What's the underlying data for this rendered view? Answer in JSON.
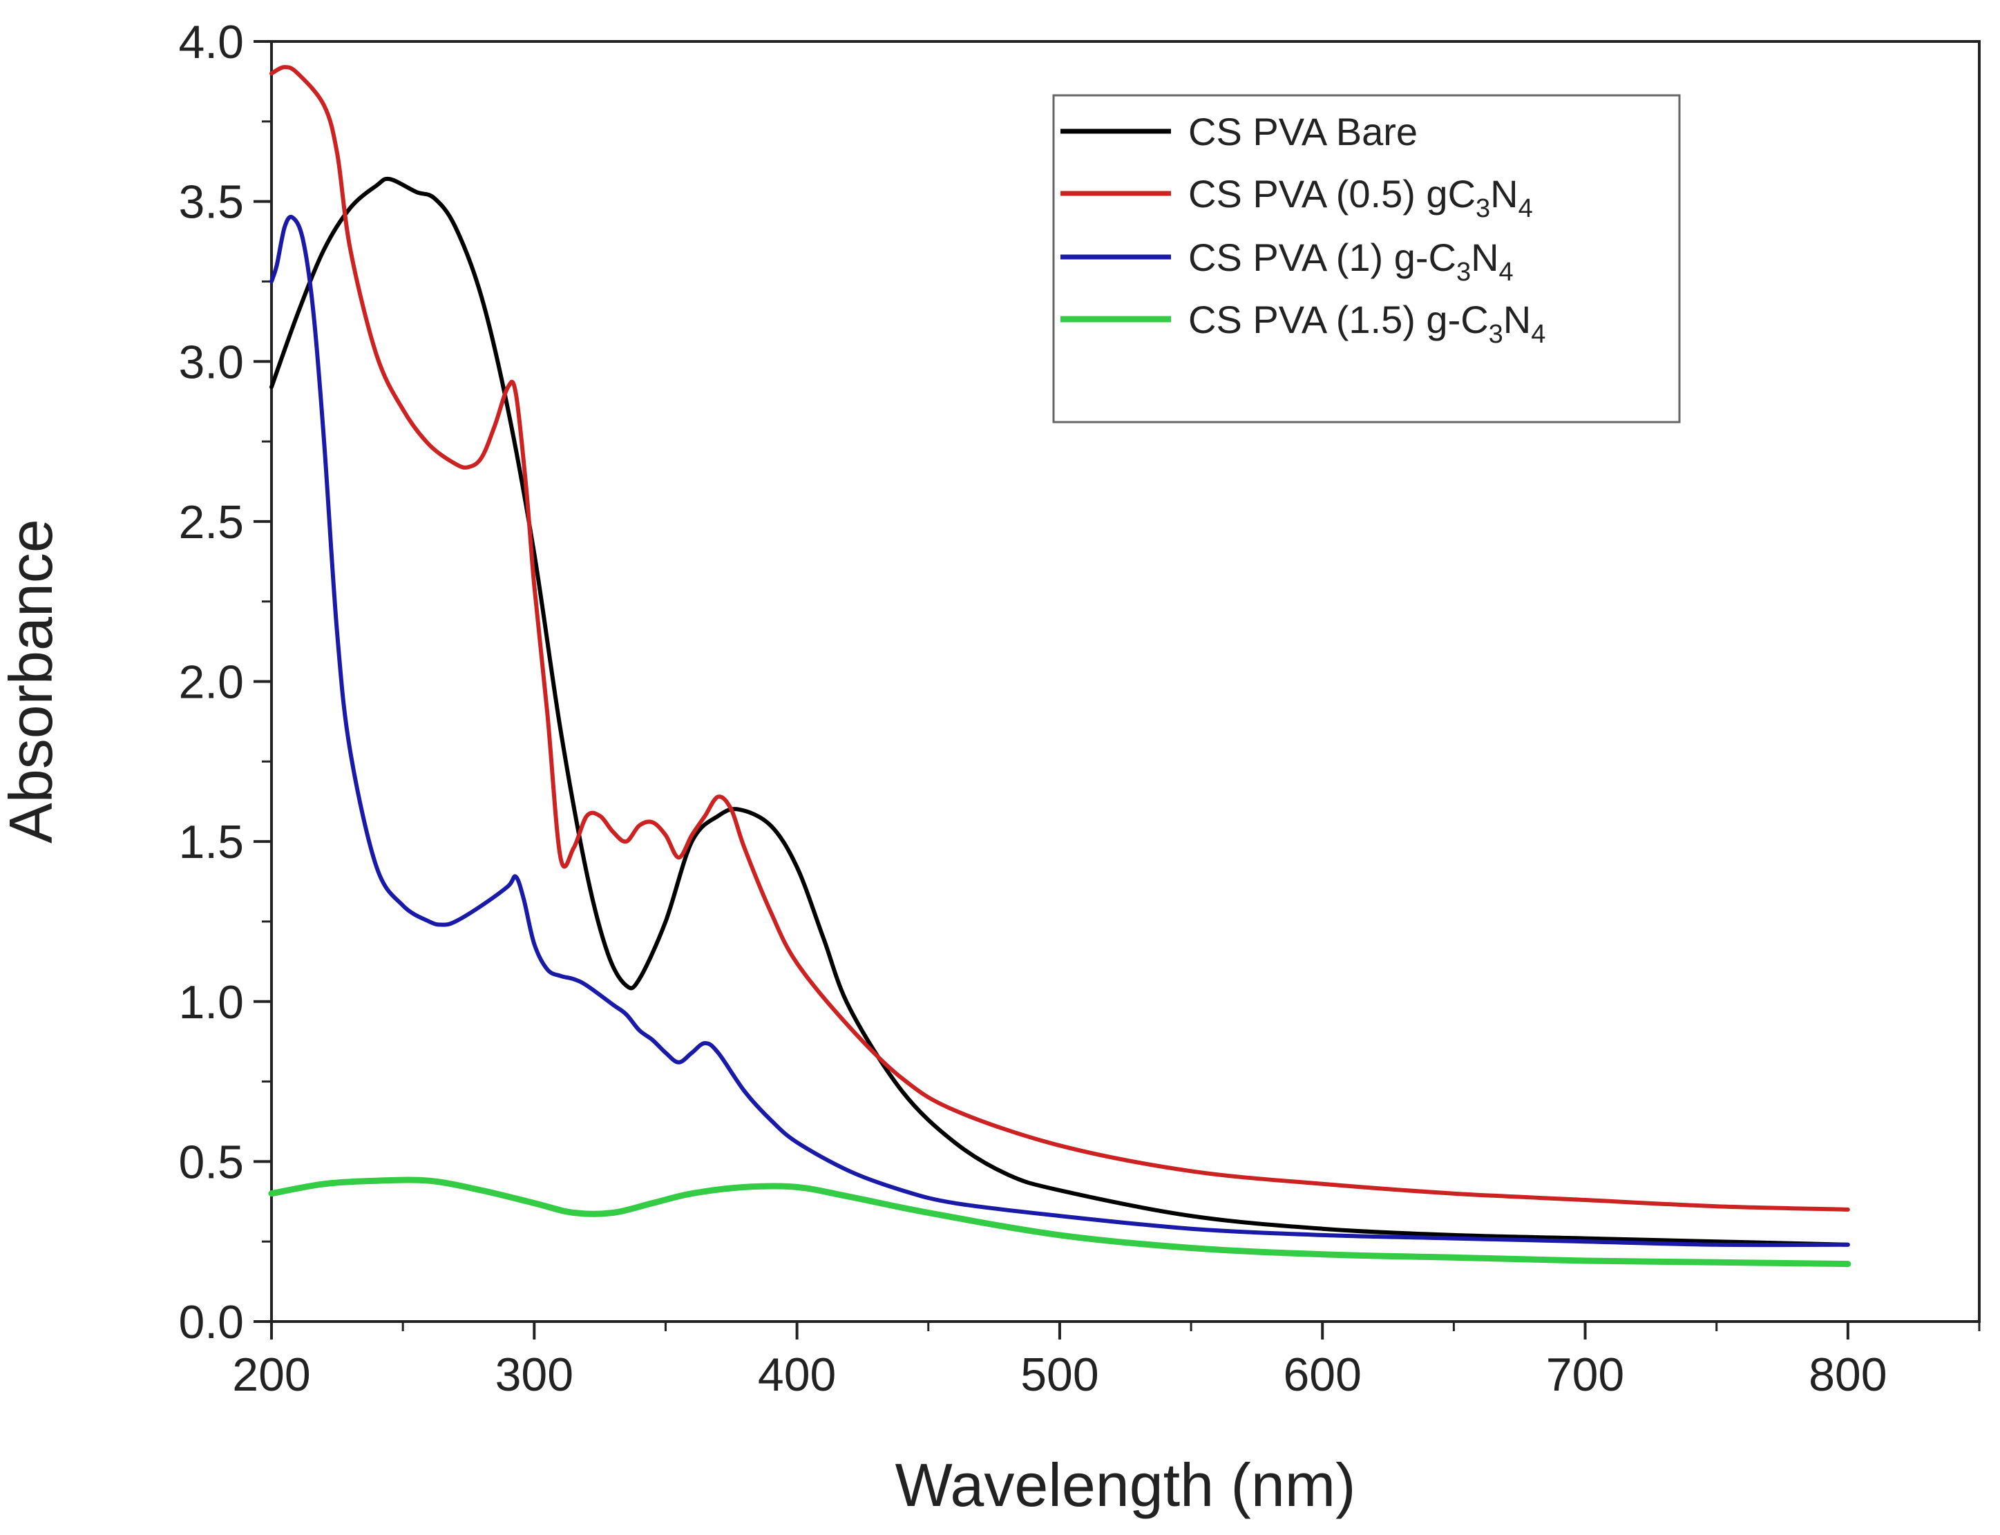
{
  "chart_data": {
    "type": "line",
    "title": "",
    "xlabel": "Wavelength (nm)",
    "ylabel": "Absorbance",
    "xlim": [
      200,
      850
    ],
    "ylim": [
      0,
      4
    ],
    "x_ticks": [
      "200",
      "300",
      "400",
      "500",
      "600",
      "700",
      "800"
    ],
    "y_ticks": [
      "0.0",
      "0.5",
      "1.0",
      "1.5",
      "2.0",
      "2.5",
      "3.0",
      "3.5",
      "4.0"
    ],
    "grid": false,
    "legend_position": "top-right",
    "series": [
      {
        "name": "CS PVA Bare",
        "label_parts": [
          [
            "CS PVA Bare",
            ""
          ]
        ],
        "color": "#000000",
        "x": [
          200,
          210,
          220,
          230,
          240,
          245,
          255,
          262,
          270,
          280,
          290,
          300,
          310,
          320,
          328,
          335,
          340,
          350,
          360,
          370,
          378,
          390,
          400,
          410,
          420,
          440,
          460,
          480,
          500,
          550,
          600,
          650,
          700,
          750,
          800
        ],
        "y": [
          2.92,
          3.15,
          3.35,
          3.48,
          3.55,
          3.57,
          3.53,
          3.51,
          3.42,
          3.2,
          2.85,
          2.4,
          1.85,
          1.4,
          1.15,
          1.05,
          1.07,
          1.25,
          1.5,
          1.58,
          1.6,
          1.55,
          1.42,
          1.2,
          0.98,
          0.72,
          0.56,
          0.46,
          0.41,
          0.33,
          0.29,
          0.27,
          0.26,
          0.25,
          0.24
        ]
      },
      {
        "name": "CS PVA (0.5) gC3N4",
        "label_parts": [
          [
            "CS PVA (0.5) gC",
            ""
          ],
          [
            "3",
            "sub"
          ],
          [
            "N",
            ""
          ],
          [
            "4",
            "sub"
          ]
        ],
        "color": "#cc2222",
        "x": [
          200,
          205,
          210,
          220,
          225,
          230,
          240,
          250,
          260,
          270,
          275,
          280,
          285,
          290,
          293,
          297,
          300,
          305,
          310,
          315,
          320,
          325,
          330,
          335,
          340,
          345,
          350,
          355,
          360,
          365,
          370,
          375,
          380,
          390,
          400,
          420,
          440,
          460,
          500,
          550,
          600,
          650,
          700,
          750,
          800
        ],
        "y": [
          3.9,
          3.92,
          3.9,
          3.8,
          3.65,
          3.35,
          3.02,
          2.85,
          2.74,
          2.68,
          2.67,
          2.7,
          2.8,
          2.92,
          2.9,
          2.6,
          2.3,
          1.9,
          1.45,
          1.48,
          1.58,
          1.58,
          1.53,
          1.5,
          1.55,
          1.56,
          1.52,
          1.45,
          1.52,
          1.58,
          1.64,
          1.6,
          1.48,
          1.28,
          1.12,
          0.92,
          0.76,
          0.66,
          0.55,
          0.47,
          0.43,
          0.4,
          0.38,
          0.36,
          0.35
        ]
      },
      {
        "name": "CS PVA (1) g-C3N4",
        "label_parts": [
          [
            "CS PVA  (1) g-C",
            ""
          ],
          [
            "3",
            "sub"
          ],
          [
            "N",
            ""
          ],
          [
            "4",
            "sub"
          ]
        ],
        "color": "#1a1aa8",
        "x": [
          200,
          202,
          205,
          208,
          212,
          216,
          220,
          225,
          230,
          240,
          250,
          260,
          265,
          270,
          280,
          290,
          293,
          296,
          300,
          305,
          310,
          315,
          320,
          330,
          335,
          340,
          345,
          350,
          355,
          360,
          365,
          370,
          380,
          390,
          400,
          420,
          440,
          460,
          500,
          550,
          600,
          650,
          700,
          750,
          800
        ],
        "y": [
          3.25,
          3.3,
          3.42,
          3.45,
          3.38,
          3.15,
          2.75,
          2.15,
          1.78,
          1.42,
          1.3,
          1.25,
          1.24,
          1.25,
          1.3,
          1.36,
          1.39,
          1.32,
          1.18,
          1.1,
          1.08,
          1.07,
          1.05,
          0.99,
          0.96,
          0.91,
          0.88,
          0.84,
          0.81,
          0.84,
          0.87,
          0.84,
          0.72,
          0.63,
          0.56,
          0.47,
          0.41,
          0.37,
          0.33,
          0.29,
          0.27,
          0.26,
          0.25,
          0.24,
          0.24
        ]
      },
      {
        "name": "CS PVA (1.5) g-C3N4",
        "label_parts": [
          [
            "CS PVA  (1.5) g-C",
            ""
          ],
          [
            "3",
            "sub"
          ],
          [
            "N",
            ""
          ],
          [
            "4",
            "sub"
          ]
        ],
        "color": "#33cc44",
        "x": [
          200,
          220,
          240,
          260,
          280,
          300,
          315,
          330,
          345,
          360,
          380,
          400,
          420,
          450,
          500,
          550,
          600,
          650,
          700,
          750,
          800
        ],
        "y": [
          0.4,
          0.43,
          0.44,
          0.44,
          0.41,
          0.37,
          0.34,
          0.34,
          0.37,
          0.4,
          0.42,
          0.42,
          0.39,
          0.34,
          0.27,
          0.23,
          0.21,
          0.2,
          0.19,
          0.185,
          0.18
        ]
      }
    ]
  }
}
